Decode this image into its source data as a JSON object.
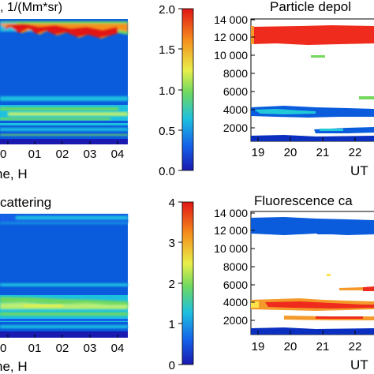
{
  "colors": {
    "background": "#0a5cdc",
    "white": "#ffffff",
    "red": "#ee2b1c",
    "orange": "#f49a2a",
    "yellow": "#ffe24a",
    "green": "#74d85e",
    "light_green": "#b9ee73",
    "cyan": "#22c8d8",
    "deep_blue": "#0b2fbf"
  },
  "chart_data": [
    {
      "type": "heatmap",
      "panel": "top-left",
      "title": ", 1/(Mm*sr)",
      "xlabel": "ne, H",
      "x_tick_labels": [
        "0",
        "01",
        "02",
        "03",
        "04"
      ],
      "colormap": "jet",
      "colorbar": {
        "range": [
          0,
          2.0
        ],
        "tick_labels": [
          "0.0",
          "0.5",
          "1.0",
          "1.5",
          "2.0"
        ]
      }
    },
    {
      "type": "heatmap",
      "panel": "top-right",
      "title": "Particle depol",
      "xlabel": "UT",
      "xlim": [
        19,
        23
      ],
      "ylim": [
        0,
        14000
      ],
      "x_tick_labels": [
        "19",
        "20",
        "21",
        "22"
      ],
      "y_tick_labels": [
        "2000",
        "4000",
        "6000",
        "8000",
        "10 000",
        "12 000",
        "14 000"
      ]
    },
    {
      "type": "heatmap",
      "panel": "bottom-left",
      "title": "cattering",
      "xlabel": "ne, H",
      "x_tick_labels": [
        "0",
        "01",
        "02",
        "03",
        "04"
      ],
      "colormap": "jet",
      "colorbar": {
        "range": [
          0,
          4
        ],
        "tick_labels": [
          "0",
          "1",
          "2",
          "3",
          "4"
        ]
      }
    },
    {
      "type": "heatmap",
      "panel": "bottom-right",
      "title": "Fluorescence ca",
      "xlabel": "UT",
      "xlim": [
        19,
        23
      ],
      "ylim": [
        0,
        14000
      ],
      "x_tick_labels": [
        "19",
        "20",
        "21",
        "22"
      ],
      "y_tick_labels": [
        "2000",
        "4000",
        "6000",
        "8000",
        "10 000",
        "12 000",
        "14 000"
      ]
    }
  ]
}
